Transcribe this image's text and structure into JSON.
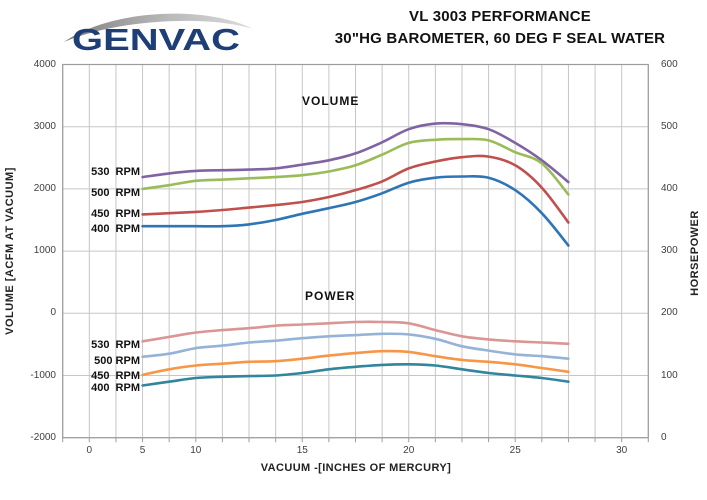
{
  "header": {
    "logo_text": "GENVAC",
    "title_line1": "VL 3003 PERFORMANCE",
    "title_line2": "30\"HG BAROMETER, 60 DEG F  SEAL WATER"
  },
  "labels": {
    "volume_group": "VOLUME",
    "power_group": "POWER"
  },
  "colors": {
    "logo_navy": "#1d3e76",
    "swoosh_gray": "#9a9a9a",
    "grid": "#c6c6c6",
    "plot_border": "#9c9c9c",
    "tick_text": "#3f3f3f"
  },
  "chart_data": {
    "type": "line",
    "title": "VL 3003 PERFORMANCE",
    "subtitle": "30\"HG BAROMETER, 60 DEG F  SEAL WATER",
    "xlabel": "VACUUM -[INCHES OF MERCURY]",
    "ylabel_left": "VOLUME [ACFM AT VACUUM]",
    "ylabel_right": "HORSEPOWER",
    "x_ticks": [
      0,
      5,
      10,
      15,
      20,
      25,
      30
    ],
    "y_left_ticks": [
      4000,
      3000,
      2000,
      1000,
      0,
      -1000,
      -2000
    ],
    "y_right_ticks": [
      600,
      500,
      400,
      300,
      200,
      100,
      0
    ],
    "y_left_range": [
      -2000,
      4000
    ],
    "y_right_range": [
      0,
      600
    ],
    "grid": "on",
    "legend_position": "inline-left-of-curves",
    "axis_note": "category x-axis: one gridline per 2.5 inHg below 10, per 1.25 inHg above 10",
    "x": [
      5,
      7.5,
      10,
      11.25,
      12.5,
      13.75,
      15,
      16.25,
      17.5,
      18.75,
      20,
      21.25,
      22.5,
      23.75,
      25,
      26.25,
      27.5
    ],
    "volume_series": [
      {
        "name": "530  RPM",
        "color": "#8064A2",
        "values": [
          2190,
          2250,
          2290,
          2300,
          2310,
          2330,
          2390,
          2460,
          2570,
          2750,
          2960,
          3050,
          3040,
          2960,
          2740,
          2460,
          2110
        ]
      },
      {
        "name": "500  RPM",
        "color": "#9BBB59",
        "values": [
          2000,
          2060,
          2130,
          2150,
          2170,
          2190,
          2220,
          2280,
          2380,
          2550,
          2740,
          2790,
          2800,
          2780,
          2590,
          2410,
          1910
        ]
      },
      {
        "name": "450  RPM",
        "color": "#C0504D",
        "values": [
          1590,
          1610,
          1630,
          1660,
          1700,
          1740,
          1790,
          1870,
          1980,
          2120,
          2330,
          2440,
          2510,
          2520,
          2380,
          2020,
          1460
        ]
      },
      {
        "name": "400  RPM",
        "color": "#2E75B6",
        "values": [
          1400,
          1400,
          1400,
          1400,
          1430,
          1500,
          1600,
          1690,
          1790,
          1930,
          2100,
          2180,
          2200,
          2180,
          1980,
          1610,
          1090
        ]
      }
    ],
    "power_series": [
      {
        "name": "530  RPM",
        "color": "#D99694",
        "values": [
          155,
          162,
          169,
          173,
          176,
          180,
          182,
          184,
          186,
          186,
          184,
          173,
          163,
          158,
          155,
          153,
          151
        ]
      },
      {
        "name": "500 RPM",
        "color": "#95B3D7",
        "values": [
          130,
          135,
          144,
          148,
          153,
          156,
          160,
          163,
          165,
          167,
          166,
          159,
          147,
          140,
          134,
          131,
          127
        ]
      },
      {
        "name": "450  RPM",
        "color": "#F79646",
        "values": [
          101,
          110,
          116,
          119,
          122,
          123,
          127,
          132,
          136,
          139,
          138,
          131,
          125,
          122,
          118,
          112,
          106
        ]
      },
      {
        "name": "400  RPM",
        "color": "#31859C",
        "values": [
          84,
          90,
          96,
          98,
          99,
          100,
          104,
          110,
          114,
          117,
          118,
          116,
          110,
          104,
          100,
          96,
          90
        ]
      }
    ]
  }
}
